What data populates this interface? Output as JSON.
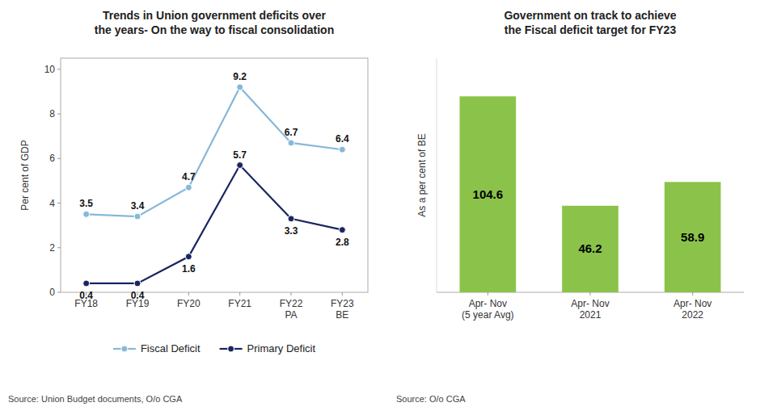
{
  "chart_data": [
    {
      "type": "line",
      "title": "Trends in Union government deficits over\nthe years- On the way to fiscal consolidation",
      "categories": [
        "FY18",
        "FY19",
        "FY20",
        "FY21",
        "FY22\nPA",
        "FY23\nBE"
      ],
      "series": [
        {
          "name": "Fiscal Deficit",
          "color": "#87b8d8",
          "marker": "circle",
          "values": [
            3.5,
            3.4,
            4.7,
            9.2,
            6.7,
            6.4
          ]
        },
        {
          "name": "Primary Deficit",
          "color": "#1a2560",
          "marker": "circle",
          "values": [
            0.4,
            0.4,
            1.6,
            5.7,
            3.3,
            2.8
          ]
        }
      ],
      "ylabel": "Per cent of GDP",
      "ylim": [
        0,
        10.5
      ],
      "yticks": [
        0,
        2,
        4,
        6,
        8,
        10
      ],
      "grid": false,
      "legend": "bottom",
      "data_labels": true,
      "source": "Source: Union Budget documents, O/o CGA"
    },
    {
      "type": "bar",
      "title": "Government on track to achieve\nthe Fiscal deficit target for FY23",
      "categories": [
        "Apr- Nov\n(5 year Avg)",
        "Apr- Nov\n2021",
        "Apr- Nov\n2022"
      ],
      "values": [
        104.6,
        46.2,
        58.9
      ],
      "color": "#8bc34a",
      "ylabel": "As a per cent of BE",
      "ylim": [
        0,
        125
      ],
      "grid": false,
      "tick_labels": "x",
      "data_labels": true,
      "source": "Source: O/o CGA"
    }
  ]
}
